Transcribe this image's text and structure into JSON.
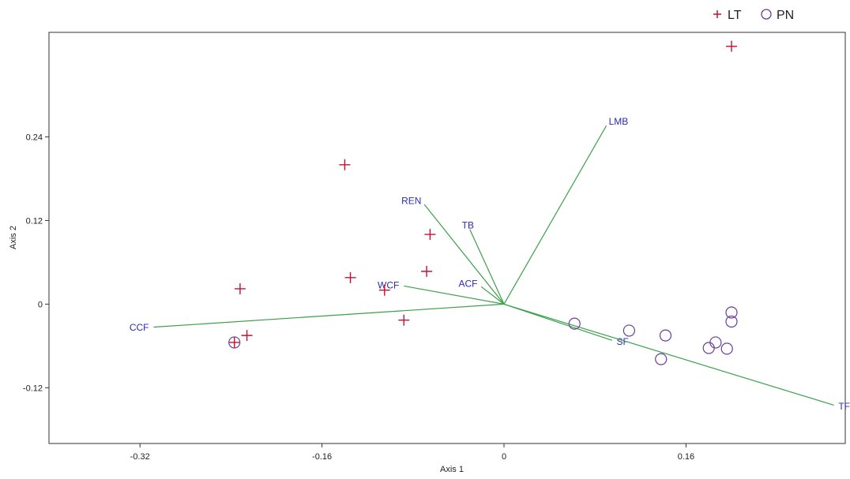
{
  "chart_data": {
    "type": "scatter",
    "subtype": "pca-biplot",
    "xlabel": "Axis 1",
    "ylabel": "Axis 2",
    "xlim": [
      -0.4,
      0.3
    ],
    "ylim": [
      -0.2,
      0.39
    ],
    "xticks": [
      -0.32,
      -0.16,
      0,
      0.16
    ],
    "xtick_labels": [
      "-0.32",
      "-0.16",
      "0",
      "0.16"
    ],
    "yticks": [
      -0.12,
      0,
      0.12,
      0.24
    ],
    "ytick_labels": [
      "-0.12",
      "0",
      "0.12",
      "0.24"
    ],
    "grid": false,
    "legend_position": "top-right",
    "series": [
      {
        "name": "LT",
        "marker": "plus",
        "color": "#c8102e",
        "points": [
          [
            0.2,
            0.37
          ],
          [
            -0.14,
            0.2
          ],
          [
            -0.065,
            0.1
          ],
          [
            -0.068,
            0.047
          ],
          [
            -0.135,
            0.038
          ],
          [
            -0.105,
            0.02
          ],
          [
            -0.232,
            0.022
          ],
          [
            -0.088,
            -0.023
          ],
          [
            -0.226,
            -0.045
          ],
          [
            -0.237,
            -0.055
          ]
        ]
      },
      {
        "name": "PN",
        "marker": "circle",
        "color": "#6a3d9a",
        "points": [
          [
            0.2,
            -0.012
          ],
          [
            0.2,
            -0.025
          ],
          [
            0.062,
            -0.028
          ],
          [
            0.11,
            -0.038
          ],
          [
            0.142,
            -0.045
          ],
          [
            0.186,
            -0.055
          ],
          [
            0.18,
            -0.063
          ],
          [
            0.196,
            -0.064
          ],
          [
            0.138,
            -0.079
          ],
          [
            -0.237,
            -0.055
          ]
        ]
      }
    ],
    "vectors": [
      {
        "label": "LMB",
        "x": 0.09,
        "y": 0.256
      },
      {
        "label": "REN",
        "x": -0.07,
        "y": 0.143
      },
      {
        "label": "TB",
        "x": -0.03,
        "y": 0.107
      },
      {
        "label": "ACF",
        "x": -0.02,
        "y": 0.025
      },
      {
        "label": "WCF",
        "x": -0.088,
        "y": 0.026
      },
      {
        "label": "CCF",
        "x": -0.308,
        "y": -0.033
      },
      {
        "label": "SF",
        "x": 0.095,
        "y": -0.052
      },
      {
        "label": "TFS",
        "x": 0.29,
        "y": -0.145
      }
    ],
    "vector_color": "#3aa14a",
    "vector_label_color": "#2b2bb8"
  }
}
